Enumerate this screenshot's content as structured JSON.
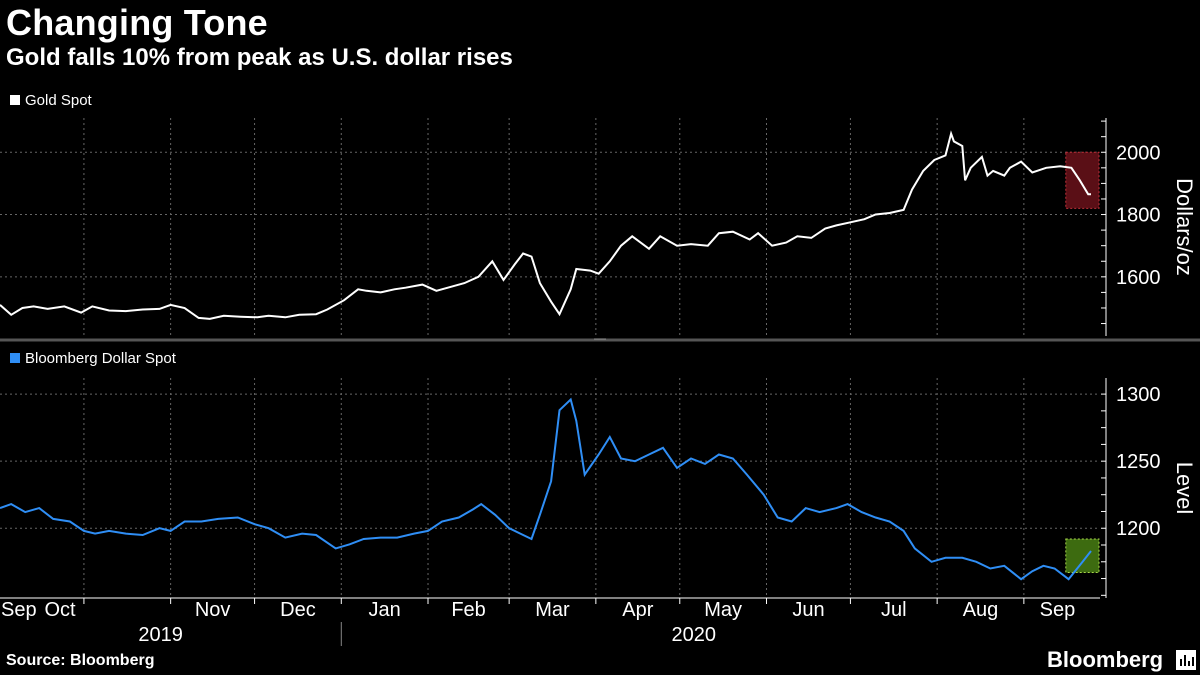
{
  "title": "Changing Tone",
  "subtitle": "Gold falls 10% from peak as U.S. dollar rises",
  "source": "Source: Bloomberg",
  "brand": "Bloomberg",
  "colors": {
    "background": "#000000",
    "gold_line": "#ffffff",
    "dollar_line": "#2f8ef5",
    "grid": "#666666",
    "gold_highlight": "#5a0f16",
    "dollar_highlight": "#3d6b10"
  },
  "chart_data": [
    {
      "type": "line",
      "legend": "Gold Spot",
      "ylabel": "Dollars/oz",
      "yticks": [
        1600,
        1800,
        2000
      ],
      "ylim": [
        1410,
        2110
      ],
      "x_range": [
        "2019-09-01",
        "2020-09-25"
      ],
      "highlight": {
        "from": "2020-09-16",
        "to": "2020-09-30",
        "y_from": 1820,
        "y_to": 2000
      },
      "series": [
        {
          "values": [
            [
              "2019-09-01",
              1510
            ],
            [
              "2019-09-05",
              1478
            ],
            [
              "2019-09-09",
              1500
            ],
            [
              "2019-09-13",
              1505
            ],
            [
              "2019-09-18",
              1497
            ],
            [
              "2019-09-24",
              1505
            ],
            [
              "2019-09-30",
              1485
            ],
            [
              "2019-10-04",
              1505
            ],
            [
              "2019-10-10",
              1492
            ],
            [
              "2019-10-16",
              1490
            ],
            [
              "2019-10-22",
              1495
            ],
            [
              "2019-10-28",
              1497
            ],
            [
              "2019-11-01",
              1510
            ],
            [
              "2019-11-06",
              1500
            ],
            [
              "2019-11-11",
              1468
            ],
            [
              "2019-11-15",
              1465
            ],
            [
              "2019-11-20",
              1475
            ],
            [
              "2019-11-26",
              1472
            ],
            [
              "2019-12-02",
              1470
            ],
            [
              "2019-12-06",
              1475
            ],
            [
              "2019-12-12",
              1470
            ],
            [
              "2019-12-17",
              1478
            ],
            [
              "2019-12-23",
              1480
            ],
            [
              "2019-12-27",
              1495
            ],
            [
              "2020-01-02",
              1525
            ],
            [
              "2020-01-07",
              1560
            ],
            [
              "2020-01-10",
              1555
            ],
            [
              "2020-01-15",
              1550
            ],
            [
              "2020-01-20",
              1560
            ],
            [
              "2020-01-24",
              1565
            ],
            [
              "2020-01-30",
              1575
            ],
            [
              "2020-02-04",
              1555
            ],
            [
              "2020-02-10",
              1570
            ],
            [
              "2020-02-14",
              1580
            ],
            [
              "2020-02-19",
              1600
            ],
            [
              "2020-02-24",
              1650
            ],
            [
              "2020-02-28",
              1590
            ],
            [
              "2020-03-03",
              1640
            ],
            [
              "2020-03-06",
              1675
            ],
            [
              "2020-03-09",
              1665
            ],
            [
              "2020-03-12",
              1580
            ],
            [
              "2020-03-16",
              1520
            ],
            [
              "2020-03-19",
              1480
            ],
            [
              "2020-03-23",
              1560
            ],
            [
              "2020-03-25",
              1625
            ],
            [
              "2020-03-30",
              1620
            ],
            [
              "2020-04-02",
              1610
            ],
            [
              "2020-04-06",
              1650
            ],
            [
              "2020-04-10",
              1700
            ],
            [
              "2020-04-14",
              1730
            ],
            [
              "2020-04-20",
              1690
            ],
            [
              "2020-04-24",
              1730
            ],
            [
              "2020-04-30",
              1700
            ],
            [
              "2020-05-05",
              1705
            ],
            [
              "2020-05-11",
              1700
            ],
            [
              "2020-05-15",
              1740
            ],
            [
              "2020-05-20",
              1745
            ],
            [
              "2020-05-26",
              1720
            ],
            [
              "2020-05-29",
              1740
            ],
            [
              "2020-06-03",
              1700
            ],
            [
              "2020-06-08",
              1710
            ],
            [
              "2020-06-12",
              1730
            ],
            [
              "2020-06-17",
              1725
            ],
            [
              "2020-06-22",
              1755
            ],
            [
              "2020-06-26",
              1765
            ],
            [
              "2020-07-01",
              1775
            ],
            [
              "2020-07-06",
              1785
            ],
            [
              "2020-07-10",
              1800
            ],
            [
              "2020-07-15",
              1805
            ],
            [
              "2020-07-20",
              1815
            ],
            [
              "2020-07-23",
              1880
            ],
            [
              "2020-07-27",
              1940
            ],
            [
              "2020-07-31",
              1975
            ],
            [
              "2020-08-04",
              1990
            ],
            [
              "2020-08-06",
              2060
            ],
            [
              "2020-08-07",
              2035
            ],
            [
              "2020-08-10",
              2020
            ],
            [
              "2020-08-11",
              1910
            ],
            [
              "2020-08-13",
              1950
            ],
            [
              "2020-08-17",
              1985
            ],
            [
              "2020-08-19",
              1925
            ],
            [
              "2020-08-21",
              1940
            ],
            [
              "2020-08-25",
              1925
            ],
            [
              "2020-08-27",
              1950
            ],
            [
              "2020-08-31",
              1970
            ],
            [
              "2020-09-04",
              1935
            ],
            [
              "2020-09-09",
              1950
            ],
            [
              "2020-09-14",
              1955
            ],
            [
              "2020-09-18",
              1950
            ],
            [
              "2020-09-21",
              1910
            ],
            [
              "2020-09-24",
              1865
            ],
            [
              "2020-09-25",
              1865
            ]
          ]
        }
      ]
    },
    {
      "type": "line",
      "legend": "Bloomberg Dollar Spot",
      "ylabel": "Level",
      "yticks": [
        1200,
        1250,
        1300
      ],
      "ylim": [
        1148,
        1312
      ],
      "x_range": [
        "2019-09-01",
        "2020-09-25"
      ],
      "highlight": {
        "from": "2020-09-16",
        "to": "2020-09-30",
        "y_from": 1167,
        "y_to": 1192
      },
      "series": [
        {
          "values": [
            [
              "2019-09-01",
              1215
            ],
            [
              "2019-09-05",
              1218
            ],
            [
              "2019-09-10",
              1212
            ],
            [
              "2019-09-15",
              1215
            ],
            [
              "2019-09-20",
              1207
            ],
            [
              "2019-09-26",
              1205
            ],
            [
              "2019-10-01",
              1198
            ],
            [
              "2019-10-05",
              1196
            ],
            [
              "2019-10-10",
              1198
            ],
            [
              "2019-10-16",
              1196
            ],
            [
              "2019-10-22",
              1195
            ],
            [
              "2019-10-28",
              1200
            ],
            [
              "2019-11-01",
              1198
            ],
            [
              "2019-11-06",
              1205
            ],
            [
              "2019-11-12",
              1205
            ],
            [
              "2019-11-18",
              1207
            ],
            [
              "2019-11-25",
              1208
            ],
            [
              "2019-12-01",
              1203
            ],
            [
              "2019-12-06",
              1200
            ],
            [
              "2019-12-12",
              1193
            ],
            [
              "2019-12-18",
              1196
            ],
            [
              "2019-12-23",
              1195
            ],
            [
              "2019-12-30",
              1185
            ],
            [
              "2020-01-04",
              1188
            ],
            [
              "2020-01-09",
              1192
            ],
            [
              "2020-01-15",
              1193
            ],
            [
              "2020-01-21",
              1193
            ],
            [
              "2020-01-27",
              1196
            ],
            [
              "2020-02-01",
              1198
            ],
            [
              "2020-02-06",
              1205
            ],
            [
              "2020-02-12",
              1208
            ],
            [
              "2020-02-17",
              1214
            ],
            [
              "2020-02-20",
              1218
            ],
            [
              "2020-02-25",
              1210
            ],
            [
              "2020-03-01",
              1200
            ],
            [
              "2020-03-05",
              1196
            ],
            [
              "2020-03-09",
              1192
            ],
            [
              "2020-03-12",
              1210
            ],
            [
              "2020-03-16",
              1235
            ],
            [
              "2020-03-19",
              1288
            ],
            [
              "2020-03-23",
              1296
            ],
            [
              "2020-03-25",
              1280
            ],
            [
              "2020-03-28",
              1240
            ],
            [
              "2020-04-02",
              1255
            ],
            [
              "2020-04-06",
              1268
            ],
            [
              "2020-04-10",
              1252
            ],
            [
              "2020-04-15",
              1250
            ],
            [
              "2020-04-20",
              1255
            ],
            [
              "2020-04-25",
              1260
            ],
            [
              "2020-04-30",
              1245
            ],
            [
              "2020-05-05",
              1252
            ],
            [
              "2020-05-10",
              1248
            ],
            [
              "2020-05-15",
              1255
            ],
            [
              "2020-05-20",
              1252
            ],
            [
              "2020-05-25",
              1240
            ],
            [
              "2020-05-31",
              1225
            ],
            [
              "2020-06-05",
              1208
            ],
            [
              "2020-06-10",
              1205
            ],
            [
              "2020-06-15",
              1215
            ],
            [
              "2020-06-20",
              1212
            ],
            [
              "2020-06-26",
              1215
            ],
            [
              "2020-06-30",
              1218
            ],
            [
              "2020-07-05",
              1212
            ],
            [
              "2020-07-10",
              1208
            ],
            [
              "2020-07-15",
              1205
            ],
            [
              "2020-07-20",
              1198
            ],
            [
              "2020-07-24",
              1185
            ],
            [
              "2020-07-30",
              1175
            ],
            [
              "2020-08-04",
              1178
            ],
            [
              "2020-08-10",
              1178
            ],
            [
              "2020-08-15",
              1175
            ],
            [
              "2020-08-20",
              1170
            ],
            [
              "2020-08-25",
              1172
            ],
            [
              "2020-08-31",
              1162
            ],
            [
              "2020-09-04",
              1168
            ],
            [
              "2020-09-08",
              1172
            ],
            [
              "2020-09-12",
              1170
            ],
            [
              "2020-09-17",
              1162
            ],
            [
              "2020-09-22",
              1175
            ],
            [
              "2020-09-25",
              1183
            ]
          ]
        }
      ]
    }
  ],
  "x_axis": {
    "month_labels": [
      {
        "date": "2019-09-01",
        "label": "Sep"
      },
      {
        "date": "2019-10-01",
        "label": "Oct"
      },
      {
        "date": "2019-11-01",
        "label": "Nov"
      },
      {
        "date": "2019-12-01",
        "label": "Dec"
      },
      {
        "date": "2020-01-01",
        "label": "Jan"
      },
      {
        "date": "2020-02-01",
        "label": "Feb"
      },
      {
        "date": "2020-03-01",
        "label": "Mar"
      },
      {
        "date": "2020-04-01",
        "label": "Apr"
      },
      {
        "date": "2020-05-01",
        "label": "May"
      },
      {
        "date": "2020-06-01",
        "label": "Jun"
      },
      {
        "date": "2020-07-01",
        "label": "Jul"
      },
      {
        "date": "2020-08-01",
        "label": "Aug"
      },
      {
        "date": "2020-09-01",
        "label": "Sep"
      }
    ],
    "year_labels": [
      {
        "date": "2019-11-01",
        "label": "2019"
      },
      {
        "date": "2020-05-01",
        "label": "2020"
      }
    ],
    "year_divider_date": "2020-01-01"
  }
}
